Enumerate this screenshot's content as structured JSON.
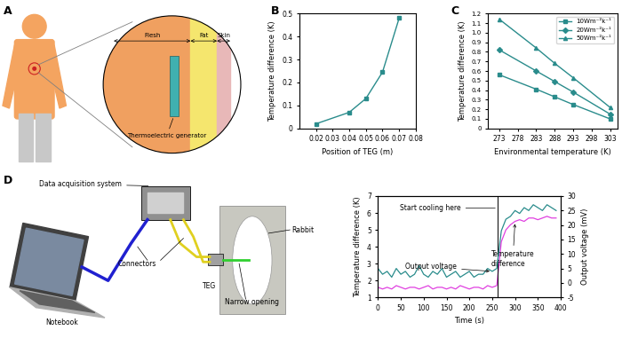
{
  "panel_labels": [
    "A",
    "B",
    "C",
    "D"
  ],
  "diagram_a": {
    "layers": [
      "Flesh",
      "Fat",
      "Skin"
    ],
    "device": "Thermoelectric generator"
  },
  "chart_data": [
    {
      "type": "line",
      "x": [
        0.02,
        0.04,
        0.05,
        0.06,
        0.07
      ],
      "values": [
        0.02,
        0.07,
        0.13,
        0.245,
        0.48
      ],
      "color": "#2a8c8c",
      "marker": "s",
      "x_label": "Position of TEG (m)",
      "y_label": "Temperature difference (K)",
      "xlim": [
        0.01,
        0.08
      ],
      "xticks": [
        0.02,
        0.03,
        0.04,
        0.05,
        0.06,
        0.07,
        0.08
      ],
      "ylim": [
        0,
        0.5
      ],
      "yticks": [
        0,
        0.1,
        0.2,
        0.3,
        0.4,
        0.5
      ]
    },
    {
      "type": "line",
      "x": [
        273,
        283,
        288,
        293,
        303
      ],
      "series": [
        {
          "name": "10Wm⁻²k⁻¹",
          "color": "#2a8c8c",
          "marker": "s",
          "values": [
            0.56,
            0.41,
            0.33,
            0.25,
            0.1
          ]
        },
        {
          "name": "20Wm⁻²k⁻¹",
          "color": "#2a8c8c",
          "marker": "D",
          "values": [
            0.82,
            0.6,
            0.49,
            0.38,
            0.15
          ]
        },
        {
          "name": "50Wm⁻²k⁻¹",
          "color": "#2a8c8c",
          "marker": "^",
          "values": [
            1.14,
            0.84,
            0.68,
            0.53,
            0.22
          ]
        }
      ],
      "x_label": "Environmental temperature (K)",
      "y_label": "Temperature difference (K)",
      "xlim": [
        270,
        305
      ],
      "xticks": [
        273,
        278,
        283,
        288,
        293,
        298,
        303
      ],
      "ylim": [
        0,
        1.2
      ],
      "yticks": [
        0,
        0.1,
        0.2,
        0.3,
        0.4,
        0.5,
        0.6,
        0.7,
        0.8,
        0.9,
        1.0,
        1.1,
        1.2
      ],
      "legend": "upper right"
    },
    {
      "type": "line",
      "x": [
        0,
        10,
        20,
        30,
        40,
        50,
        60,
        70,
        80,
        90,
        100,
        110,
        120,
        130,
        140,
        150,
        160,
        170,
        180,
        190,
        200,
        210,
        220,
        230,
        240,
        250,
        260,
        270,
        280,
        290,
        300,
        310,
        320,
        330,
        340,
        350,
        360,
        370,
        380,
        390
      ],
      "series": [
        {
          "name": "Temperature\ndifference",
          "color": "#e040e0",
          "annotate_at": 300,
          "values": [
            1.6,
            1.5,
            1.6,
            1.5,
            1.7,
            1.6,
            1.5,
            1.6,
            1.6,
            1.5,
            1.6,
            1.7,
            1.5,
            1.6,
            1.6,
            1.5,
            1.6,
            1.5,
            1.7,
            1.6,
            1.5,
            1.6,
            1.6,
            1.5,
            1.7,
            1.6,
            1.7,
            4.3,
            5.0,
            5.3,
            5.5,
            5.6,
            5.5,
            5.7,
            5.7,
            5.6,
            5.7,
            5.8,
            5.7,
            5.7
          ]
        },
        {
          "name": "Output voltage",
          "color": "#2a8c8c",
          "axis": "y2",
          "annotate_at": 250,
          "values": [
            5,
            3,
            4,
            2,
            5,
            3,
            4,
            2,
            3,
            6,
            3,
            2,
            4,
            3,
            5,
            2,
            3,
            4,
            2,
            3,
            4,
            2,
            3,
            3,
            5,
            4,
            5,
            18,
            22,
            23,
            25,
            24,
            26,
            25,
            27,
            26,
            25,
            27,
            26,
            25
          ]
        }
      ],
      "annotations": [
        {
          "text": "Start cooling here",
          "x": 262
        }
      ],
      "x_label": "Time (s)",
      "y_label": "Temperature difference (K)",
      "y2_label": "Output voltage (mV)",
      "xlim": [
        0,
        400
      ],
      "xticks": [
        0,
        50,
        100,
        150,
        200,
        250,
        300,
        350,
        400
      ],
      "ylim": [
        1,
        7
      ],
      "yticks": [
        1,
        2,
        3,
        4,
        5,
        6,
        7
      ],
      "y2lim": [
        -5,
        30
      ],
      "y2ticks": [
        -5,
        0,
        5,
        10,
        15,
        20,
        25,
        30
      ]
    }
  ],
  "diagram_d": {
    "daq": "Data acquisition system",
    "connectors": "Connectors",
    "rabbit": "Rabbit",
    "teg": "TEG",
    "opening": "Narrow opening",
    "notebook": "Notebook"
  }
}
